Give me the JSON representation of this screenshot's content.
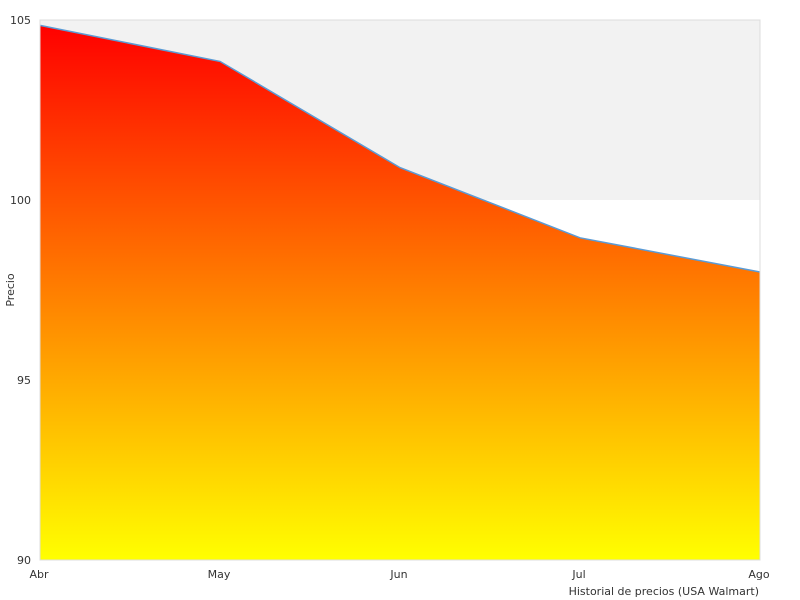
{
  "chart_data": {
    "type": "area",
    "title": "",
    "xlabel": "Historial de precios (USA Walmart)",
    "ylabel": "Precio",
    "categories": [
      "Abr",
      "May",
      "Jun",
      "Jul",
      "Ago"
    ],
    "series": [
      {
        "values": [
          104.85,
          103.85,
          100.9,
          98.95,
          98.0
        ]
      }
    ],
    "ylim": [
      90,
      105
    ],
    "yticks": [
      90,
      95,
      100,
      105
    ],
    "band": {
      "from": 100,
      "to": 105
    },
    "grid": false,
    "legend": "none",
    "colors": {
      "fill_top": "#ff0000",
      "fill_bottom": "#ffff00",
      "line": "#5b9bd5",
      "band": "#f2f2f2",
      "plot_border": "#dcdcdc"
    }
  }
}
